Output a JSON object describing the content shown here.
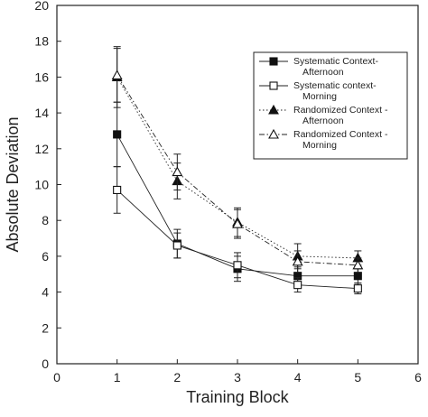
{
  "chart_data": {
    "type": "line",
    "xlabel": "Training Block",
    "ylabel": "Absolute Deviation",
    "xlim": [
      0,
      6
    ],
    "ylim": [
      0,
      20
    ],
    "x_ticks": [
      "0",
      "1",
      "2",
      "3",
      "4",
      "5",
      "6"
    ],
    "y_ticks": [
      "0",
      "2",
      "4",
      "6",
      "8",
      "10",
      "12",
      "14",
      "16",
      "18",
      "20"
    ],
    "grid": false,
    "legend_position": "top-right",
    "series": [
      {
        "name": "Systematic Context-Afternoon",
        "legend_lines": [
          "Systematic Context-",
          "Afternoon"
        ],
        "marker": "filled-square",
        "line_style": "solid",
        "x": [
          1,
          2,
          3,
          4,
          5
        ],
        "y": [
          12.8,
          6.7,
          5.3,
          4.9,
          4.9
        ],
        "err": [
          1.8,
          0.8,
          0.7,
          0.5,
          0.4
        ]
      },
      {
        "name": "Systematic context-Morning",
        "legend_lines": [
          "Systematic context-",
          "Morning"
        ],
        "marker": "open-square",
        "line_style": "solid",
        "x": [
          1,
          2,
          3,
          4,
          5
        ],
        "y": [
          9.7,
          6.6,
          5.5,
          4.4,
          4.2
        ],
        "err": [
          1.3,
          0.7,
          0.7,
          0.4,
          0.3
        ]
      },
      {
        "name": "Randomized Context - Afternoon",
        "legend_lines": [
          "Randomized Context -",
          "Afternoon"
        ],
        "marker": "filled-triangle",
        "line_style": "dotted",
        "x": [
          1,
          2,
          3,
          4,
          5
        ],
        "y": [
          16.0,
          10.2,
          7.9,
          6.0,
          5.9
        ],
        "err": [
          1.7,
          1.0,
          0.8,
          0.7,
          0.4
        ]
      },
      {
        "name": "Randomized Context - Morning",
        "legend_lines": [
          "Randomized Context -",
          "Morning"
        ],
        "marker": "open-triangle",
        "line_style": "dashdot",
        "x": [
          1,
          2,
          3,
          4,
          5
        ],
        "y": [
          16.1,
          10.7,
          7.8,
          5.7,
          5.5
        ],
        "err": [
          1.5,
          1.0,
          0.8,
          0.6,
          0.4
        ]
      }
    ]
  }
}
